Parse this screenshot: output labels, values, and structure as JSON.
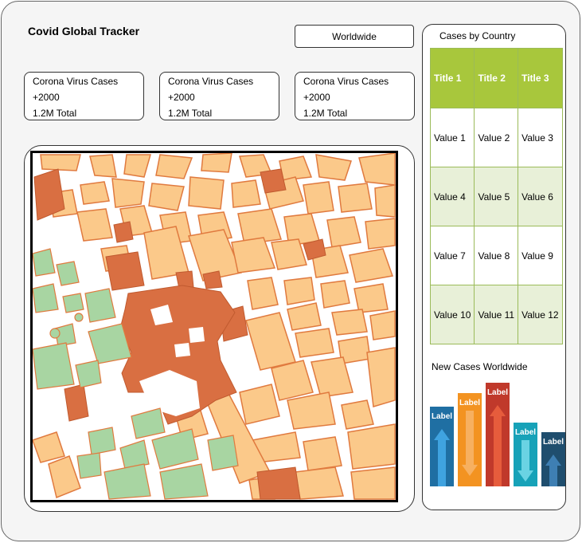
{
  "header": {
    "title": "Covid Global Tracker",
    "scope_button": "Worldwide"
  },
  "cards": [
    {
      "label": "Corona Virus Cases",
      "delta": "+2000",
      "total": "1.2M Total"
    },
    {
      "label": "Corona Virus Cases",
      "delta": "+2000",
      "total": "1.2M Total"
    },
    {
      "label": "Corona Virus Cases",
      "delta": "+2000",
      "total": "1.2M Total"
    }
  ],
  "cases_by_country": {
    "title": "Cases by Country",
    "headers": [
      "Title 1",
      "Title 2",
      "Title 3"
    ],
    "rows": [
      [
        "Value 1",
        "Value 2",
        "Value 3"
      ],
      [
        "Value 4",
        "Value 5",
        "Value 6"
      ],
      [
        "Value 7",
        "Value 8",
        "Value 9"
      ],
      [
        "Value 10",
        "Value 11",
        "Value 12"
      ]
    ]
  },
  "new_cases": {
    "title": "New Cases Worldwide"
  },
  "chart_data": {
    "type": "bar",
    "title": "New Cases Worldwide",
    "categories": [
      "Label",
      "Label",
      "Label",
      "Label",
      "Label"
    ],
    "values": [
      100,
      117,
      130,
      80,
      68
    ],
    "directions": [
      "up",
      "down",
      "up",
      "down",
      "up"
    ],
    "colors": [
      "#1f6fa3",
      "#f39321",
      "#c0392b",
      "#17a2b8",
      "#1f4e6e"
    ],
    "arrow_colors": [
      "#3fa3e0",
      "#f7b060",
      "#e65c3c",
      "#6ad3e3",
      "#3e7fb3"
    ]
  },
  "colors": {
    "map_block": "#fbc98a",
    "map_block_stroke": "#e07a3f",
    "map_dark": "#d96f42",
    "map_park": "#a8d5a2",
    "table_header": "#a8c73c",
    "table_alt": "#e8f0d8"
  }
}
